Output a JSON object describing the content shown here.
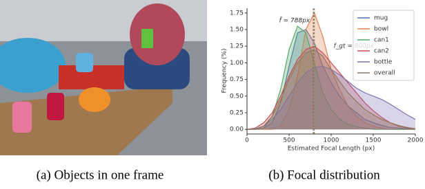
{
  "captions": [
    "(a) Objects in one frame",
    "(b) Focal distribution"
  ],
  "chart_data": {
    "type": "line",
    "xlabel": "Estimated Focal Length (px)",
    "ylabel": "Frequency (%)",
    "x": [
      0,
      100,
      200,
      300,
      400,
      500,
      600,
      700,
      800,
      900,
      1000,
      1100,
      1200,
      1300,
      1400,
      1500,
      1600,
      1700,
      1800,
      1900,
      2000
    ],
    "series": [
      {
        "name": "mug",
        "color": "#4c72b0",
        "values": [
          0,
          0,
          0.02,
          0.1,
          0.4,
          0.95,
          1.45,
          1.5,
          1.3,
          0.95,
          0.7,
          0.5,
          0.35,
          0.25,
          0.15,
          0.1,
          0.06,
          0.03,
          0.02,
          0.01,
          0
        ]
      },
      {
        "name": "bowl",
        "color": "#dd8452",
        "values": [
          0,
          0,
          0,
          0,
          0.05,
          0.3,
          0.8,
          1.5,
          1.75,
          1.4,
          0.9,
          0.6,
          0.35,
          0.2,
          0.1,
          0.05,
          0.02,
          0,
          0,
          0,
          0
        ]
      },
      {
        "name": "can1",
        "color": "#55a868",
        "values": [
          0,
          0,
          0.02,
          0.2,
          0.6,
          1.2,
          1.55,
          1.45,
          1.0,
          0.55,
          0.3,
          0.15,
          0.08,
          0.04,
          0.02,
          0,
          0,
          0,
          0,
          0,
          0
        ]
      },
      {
        "name": "can2",
        "color": "#c44e52",
        "values": [
          0,
          0.02,
          0.1,
          0.25,
          0.5,
          0.8,
          1.05,
          1.2,
          1.25,
          1.15,
          1.0,
          0.85,
          0.7,
          0.55,
          0.4,
          0.28,
          0.18,
          0.1,
          0.05,
          0.02,
          0.01
        ]
      },
      {
        "name": "bottle",
        "color": "#8172b3",
        "values": [
          0,
          0.01,
          0.05,
          0.15,
          0.3,
          0.5,
          0.7,
          0.85,
          0.93,
          0.95,
          0.9,
          0.82,
          0.72,
          0.62,
          0.55,
          0.5,
          0.45,
          0.38,
          0.3,
          0.22,
          0.15
        ]
      },
      {
        "name": "overall",
        "color": "#937860",
        "values": [
          0,
          0,
          0.05,
          0.2,
          0.45,
          0.75,
          1.0,
          1.15,
          1.2,
          1.1,
          0.9,
          0.72,
          0.55,
          0.42,
          0.3,
          0.22,
          0.15,
          0.1,
          0.06,
          0.03,
          0.01
        ]
      }
    ],
    "vlines": [
      {
        "value": 788,
        "color": "#c44e52",
        "label": "f̄ = 788px"
      },
      {
        "value": 800,
        "color": "#55a868",
        "label": "f_gt = 800px"
      }
    ],
    "xlim": [
      0,
      2000
    ],
    "xticks": [
      0,
      500,
      1000,
      1500,
      2000
    ],
    "ylim": [
      -0.07,
      1.82
    ],
    "yticks": [
      {
        "value": 0,
        "label": "0.00"
      },
      {
        "value": 0.25,
        "label": "0.25"
      },
      {
        "value": 0.5,
        "label": "0.50"
      },
      {
        "value": 0.75,
        "label": "0.75"
      },
      {
        "value": 1,
        "label": "1.00"
      },
      {
        "value": 1.25,
        "label": "1.25"
      },
      {
        "value": 1.5,
        "label": "1.50"
      },
      {
        "value": 1.75,
        "label": "1.75"
      }
    ],
    "legend": "upper right"
  }
}
